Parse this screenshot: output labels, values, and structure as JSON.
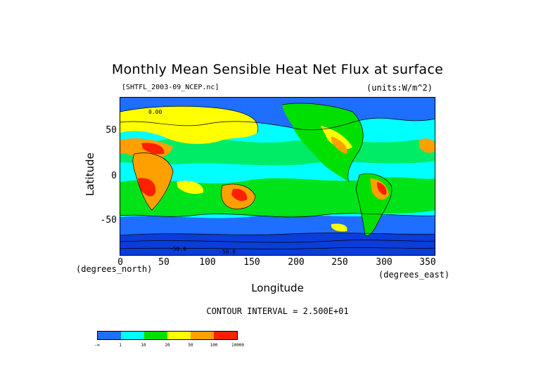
{
  "title": "Monthly Mean Sensible Heat Net Flux at surface",
  "file_label": "[SHTFL_2003-09_NCEP.nc]",
  "units_label": "(units:W/m^2)",
  "axes": {
    "y_label": "Latitude",
    "x_label": "Longitude",
    "y_ticks": [
      "50",
      "0",
      "-50"
    ],
    "x_ticks": [
      "0",
      "50",
      "100",
      "150",
      "200",
      "250",
      "300",
      "350"
    ],
    "x_unit": "(degrees_north)",
    "y_unit": "(degrees_east)"
  },
  "contour_interval": "CONTOUR INTERVAL = 2.500E+01",
  "colorbar": {
    "colors": [
      "#1e6eff",
      "#00ffff",
      "#00e000",
      "#ffff00",
      "#ffa000",
      "#ff2000"
    ],
    "labels": [
      "-∞",
      "1",
      "10",
      "20",
      "50",
      "100",
      "10000"
    ]
  },
  "map": {
    "in_plot_labels": [
      "0.00",
      "-50.0",
      "-50.0"
    ]
  }
}
